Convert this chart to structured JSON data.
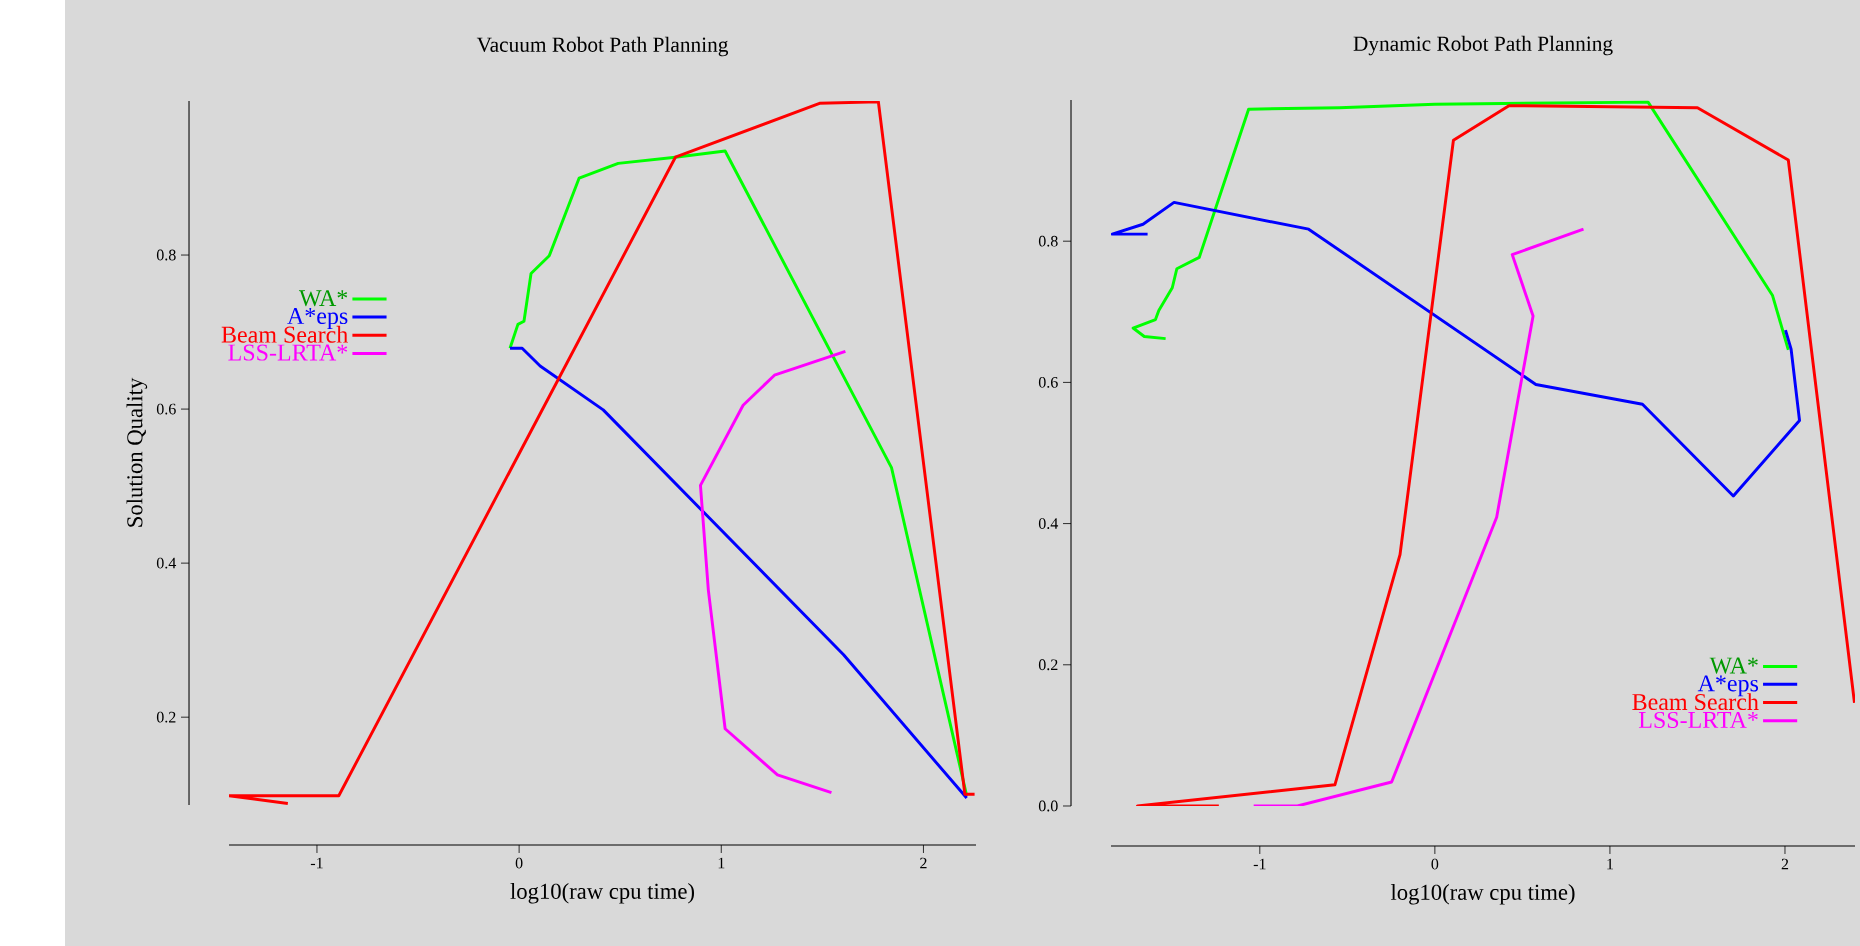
{
  "chart_data": [
    {
      "type": "line",
      "title": "Vacuum Robot Path Planning",
      "xlabel": "log10(raw cpu time)",
      "ylabel": "Solution Quality",
      "xlim": [
        -1.435,
        2.26
      ],
      "ylim": [
        0.086,
        1.0
      ],
      "xticks": [
        -1,
        0,
        1,
        2
      ],
      "yticks": [
        0.2,
        0.4,
        0.6,
        0.8
      ],
      "legend": "left",
      "series": [
        {
          "name": "WA*",
          "color": "#00ff00",
          "x": [
            -0.045,
            -0.006,
            0.024,
            0.059,
            0.149,
            0.297,
            0.49,
            0.773,
            1.019,
            1.842,
            2.214
          ],
          "values": [
            0.679,
            0.71,
            0.714,
            0.776,
            0.799,
            0.9,
            0.919,
            0.927,
            0.935,
            0.524,
            0.098
          ]
        },
        {
          "name": "A*eps",
          "color": "#0000ff",
          "x": [
            -0.045,
            0.015,
            0.104,
            0.416,
            1.605,
            2.214
          ],
          "values": [
            0.679,
            0.679,
            0.656,
            0.599,
            0.281,
            0.095
          ]
        },
        {
          "name": "Beam Search",
          "color": "#ff0000",
          "x": [
            -1.144,
            -1.435,
            -0.892,
            0.773,
            1.486,
            1.777,
            2.205,
            2.253
          ],
          "values": [
            0.088,
            0.098,
            0.098,
            0.927,
            0.997,
            0.999,
            0.1,
            0.1
          ]
        },
        {
          "name": "LSS-LRTA*",
          "color": "#ff00ff",
          "x": [
            1.545,
            1.278,
            1.019,
            0.936,
            0.897,
            1.108,
            1.263,
            1.614
          ],
          "values": [
            0.102,
            0.125,
            0.185,
            0.365,
            0.501,
            0.605,
            0.644,
            0.675
          ]
        }
      ]
    },
    {
      "type": "line",
      "title": "Dynamic Robot Path Planning",
      "xlabel": "log10(raw cpu time)",
      "xlim": [
        -1.85,
        2.4
      ],
      "ylim": [
        0,
        1.0
      ],
      "xticks": [
        -1,
        0,
        1,
        2
      ],
      "yticks": [
        {
          "value": 0,
          "label": "0.0"
        },
        0.2,
        0.4,
        0.6,
        0.8
      ],
      "legend": "bottom right",
      "series": [
        {
          "name": "WA*",
          "color": "#00ff00",
          "x": [
            -1.538,
            -1.66,
            -1.724,
            -1.596,
            -1.577,
            -1.5,
            -1.474,
            -1.346,
            -1.064,
            -0.545,
            0,
            1.218,
            1.929,
            2.019
          ],
          "values": [
            0.662,
            0.665,
            0.677,
            0.689,
            0.702,
            0.734,
            0.761,
            0.777,
            0.987,
            0.989,
            0.994,
            0.997,
            0.723,
            0.646
          ]
        },
        {
          "name": "A*eps",
          "color": "#0000ff",
          "x": [
            -1.641,
            -1.843,
            -1.667,
            -1.49,
            -0.721,
            0.577,
            1.186,
            1.705,
            2.083,
            2.035,
            2.003
          ],
          "values": [
            0.81,
            0.81,
            0.824,
            0.855,
            0.817,
            0.597,
            0.569,
            0.439,
            0.546,
            0.647,
            0.674
          ]
        },
        {
          "name": "Beam Search",
          "color": "#ff0000",
          "x": [
            -1.234,
            -1.699,
            -0.571,
            -0.199,
            0.106,
            0.423,
            1.5,
            2.019,
            2.397
          ],
          "values": [
            0,
            0,
            0.03,
            0.356,
            0.943,
            0.992,
            0.989,
            0.915,
            0.146
          ]
        },
        {
          "name": "LSS-LRTA*",
          "color": "#ff00ff",
          "x": [
            -1.035,
            -0.785,
            -0.247,
            0.353,
            0.561,
            0.442,
            0.849
          ],
          "values": [
            0,
            0,
            0.034,
            0.409,
            0.694,
            0.781,
            0.817
          ]
        }
      ]
    }
  ]
}
